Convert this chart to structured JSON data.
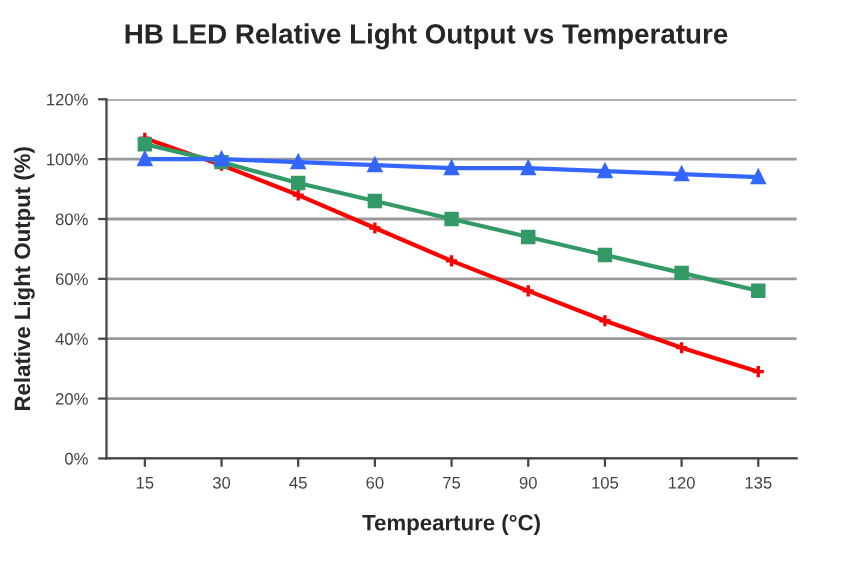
{
  "chart_data": {
    "type": "line",
    "title": "HB LED Relative Light Output vs Temperature",
    "xlabel": "Tempearture (°C)",
    "ylabel": "Relative Light Output (%)",
    "categories": [
      "15",
      "30",
      "45",
      "60",
      "75",
      "90",
      "105",
      "120",
      "135"
    ],
    "series": [
      {
        "color": "#3366ff",
        "marker": "triangle",
        "values": [
          100,
          100,
          99,
          98,
          97,
          97,
          96,
          95,
          94
        ]
      },
      {
        "color": "#339966",
        "marker": "square",
        "values": [
          105,
          99,
          92,
          86,
          80,
          74,
          68,
          62,
          56
        ]
      },
      {
        "color": "#ff0000",
        "marker": "cross",
        "values": [
          107,
          98,
          88,
          77,
          66,
          56,
          46,
          37,
          29
        ]
      }
    ],
    "ylim": [
      0,
      120
    ],
    "yticks": [
      {
        "value": 0,
        "label": "0%"
      },
      {
        "value": 20,
        "label": "20%"
      },
      {
        "value": 40,
        "label": "40%"
      },
      {
        "value": 60,
        "label": "60%"
      },
      {
        "value": 80,
        "label": "80%"
      },
      {
        "value": 100,
        "label": "100%"
      },
      {
        "value": 120,
        "label": "120%"
      }
    ],
    "grid": "y",
    "line_style": "solid"
  }
}
